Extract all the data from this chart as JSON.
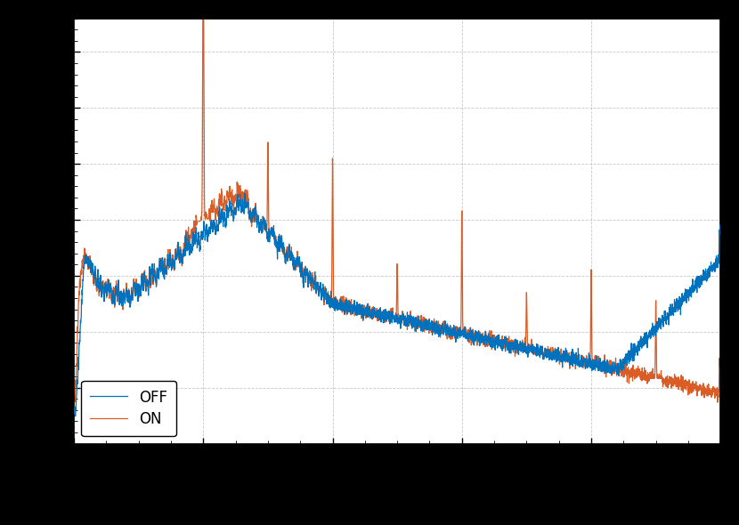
{
  "color_off": "#0072bd",
  "color_on": "#d95319",
  "legend_off": "OFF",
  "legend_on": "ON",
  "background_color": "#000000",
  "axes_facecolor": "#ffffff",
  "grid_color": "#b0b0b0",
  "figsize": [
    8.3,
    5.9
  ],
  "dpi": 100,
  "seed": 0,
  "N": 4000,
  "f_min": 0.5,
  "f_max": 500.0
}
